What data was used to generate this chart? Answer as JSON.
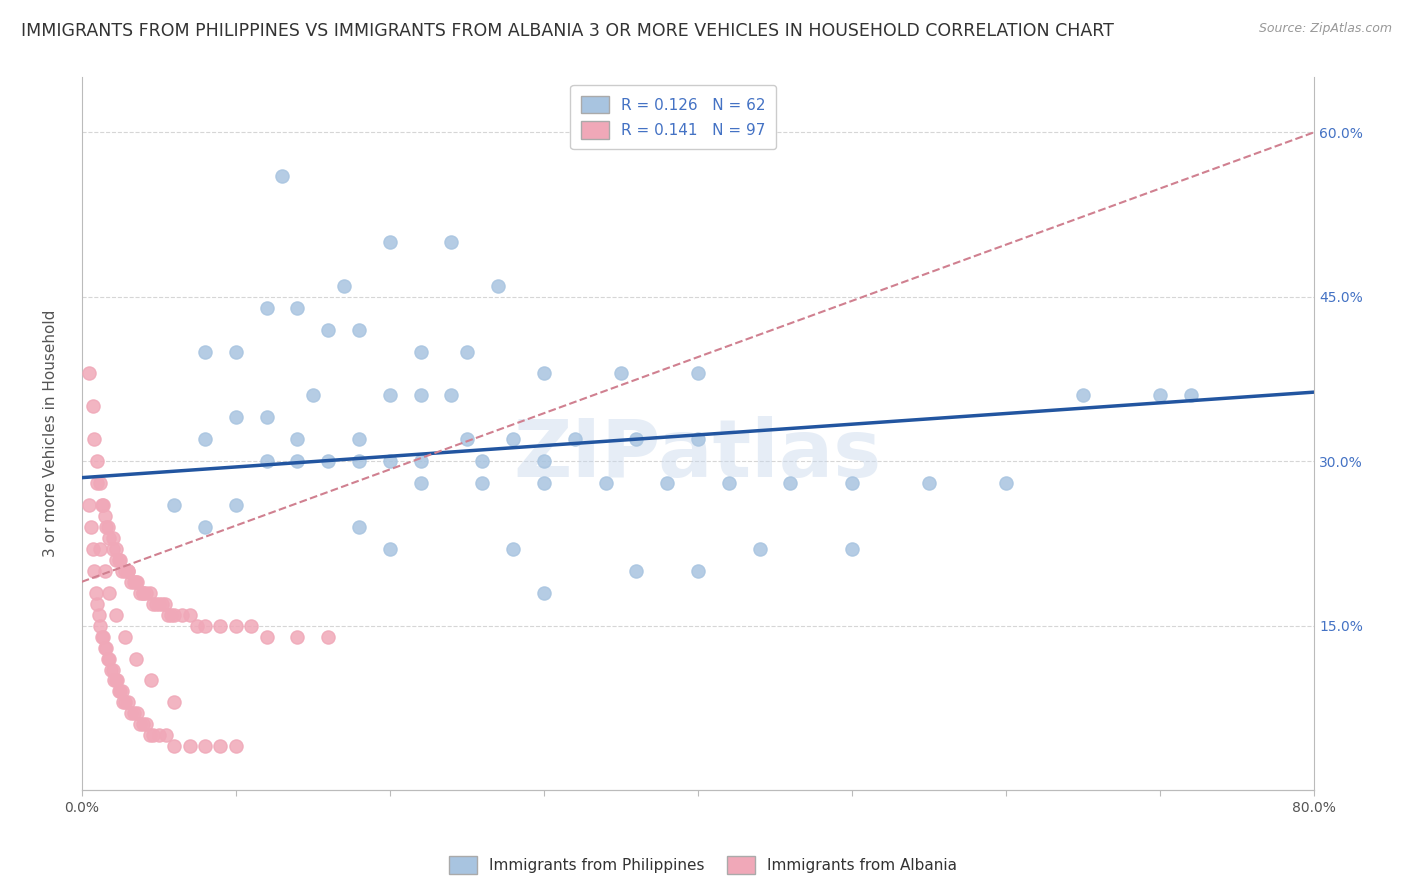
{
  "title": "IMMIGRANTS FROM PHILIPPINES VS IMMIGRANTS FROM ALBANIA 3 OR MORE VEHICLES IN HOUSEHOLD CORRELATION CHART",
  "source": "Source: ZipAtlas.com",
  "ylabel": "3 or more Vehicles in Household",
  "legend_label1": "Immigrants from Philippines",
  "legend_label2": "Immigrants from Albania",
  "R1": 0.126,
  "N1": 62,
  "R2": 0.141,
  "N2": 97,
  "color1": "#a8c4e0",
  "color2": "#f0a8b8",
  "line1_color": "#2255a0",
  "line2_color": "#d08090",
  "xmin": 0.0,
  "xmax": 0.8,
  "ymin": 0.0,
  "ymax": 0.65,
  "yticks": [
    0.15,
    0.3,
    0.45,
    0.6
  ],
  "xticks": [
    0.0,
    0.1,
    0.2,
    0.3,
    0.4,
    0.5,
    0.6,
    0.7,
    0.8
  ],
  "watermark": "ZIPatlas",
  "title_fontsize": 12.5,
  "axis_label_fontsize": 11,
  "tick_fontsize": 10,
  "blue_x": [
    0.13,
    0.2,
    0.24,
    0.27,
    0.17,
    0.12,
    0.14,
    0.16,
    0.18,
    0.1,
    0.08,
    0.22,
    0.25,
    0.3,
    0.35,
    0.4,
    0.15,
    0.2,
    0.22,
    0.24,
    0.12,
    0.1,
    0.08,
    0.14,
    0.18,
    0.25,
    0.28,
    0.32,
    0.36,
    0.4,
    0.2,
    0.22,
    0.26,
    0.3,
    0.18,
    0.16,
    0.14,
    0.12,
    0.22,
    0.26,
    0.3,
    0.34,
    0.38,
    0.42,
    0.46,
    0.5,
    0.55,
    0.6,
    0.65,
    0.7,
    0.72,
    0.5,
    0.44,
    0.1,
    0.06,
    0.08,
    0.18,
    0.2,
    0.28,
    0.36,
    0.4,
    0.3
  ],
  "blue_y": [
    0.56,
    0.5,
    0.5,
    0.46,
    0.46,
    0.44,
    0.44,
    0.42,
    0.42,
    0.4,
    0.4,
    0.4,
    0.4,
    0.38,
    0.38,
    0.38,
    0.36,
    0.36,
    0.36,
    0.36,
    0.34,
    0.34,
    0.32,
    0.32,
    0.32,
    0.32,
    0.32,
    0.32,
    0.32,
    0.32,
    0.3,
    0.3,
    0.3,
    0.3,
    0.3,
    0.3,
    0.3,
    0.3,
    0.28,
    0.28,
    0.28,
    0.28,
    0.28,
    0.28,
    0.28,
    0.28,
    0.28,
    0.28,
    0.36,
    0.36,
    0.36,
    0.22,
    0.22,
    0.26,
    0.26,
    0.24,
    0.24,
    0.22,
    0.22,
    0.2,
    0.2,
    0.18
  ],
  "pink_x": [
    0.005,
    0.007,
    0.008,
    0.01,
    0.01,
    0.012,
    0.013,
    0.014,
    0.015,
    0.016,
    0.017,
    0.018,
    0.02,
    0.02,
    0.022,
    0.022,
    0.024,
    0.025,
    0.026,
    0.028,
    0.03,
    0.03,
    0.032,
    0.034,
    0.035,
    0.036,
    0.038,
    0.04,
    0.04,
    0.042,
    0.044,
    0.046,
    0.048,
    0.05,
    0.052,
    0.054,
    0.056,
    0.058,
    0.06,
    0.065,
    0.07,
    0.075,
    0.08,
    0.09,
    0.1,
    0.11,
    0.12,
    0.14,
    0.16,
    0.005,
    0.006,
    0.007,
    0.008,
    0.009,
    0.01,
    0.011,
    0.012,
    0.013,
    0.014,
    0.015,
    0.016,
    0.017,
    0.018,
    0.019,
    0.02,
    0.021,
    0.022,
    0.023,
    0.024,
    0.025,
    0.026,
    0.027,
    0.028,
    0.03,
    0.032,
    0.034,
    0.036,
    0.038,
    0.04,
    0.042,
    0.044,
    0.046,
    0.05,
    0.055,
    0.06,
    0.07,
    0.08,
    0.09,
    0.1,
    0.012,
    0.015,
    0.018,
    0.022,
    0.028,
    0.035,
    0.045,
    0.06
  ],
  "pink_y": [
    0.38,
    0.35,
    0.32,
    0.3,
    0.28,
    0.28,
    0.26,
    0.26,
    0.25,
    0.24,
    0.24,
    0.23,
    0.23,
    0.22,
    0.22,
    0.21,
    0.21,
    0.21,
    0.2,
    0.2,
    0.2,
    0.2,
    0.19,
    0.19,
    0.19,
    0.19,
    0.18,
    0.18,
    0.18,
    0.18,
    0.18,
    0.17,
    0.17,
    0.17,
    0.17,
    0.17,
    0.16,
    0.16,
    0.16,
    0.16,
    0.16,
    0.15,
    0.15,
    0.15,
    0.15,
    0.15,
    0.14,
    0.14,
    0.14,
    0.26,
    0.24,
    0.22,
    0.2,
    0.18,
    0.17,
    0.16,
    0.15,
    0.14,
    0.14,
    0.13,
    0.13,
    0.12,
    0.12,
    0.11,
    0.11,
    0.1,
    0.1,
    0.1,
    0.09,
    0.09,
    0.09,
    0.08,
    0.08,
    0.08,
    0.07,
    0.07,
    0.07,
    0.06,
    0.06,
    0.06,
    0.05,
    0.05,
    0.05,
    0.05,
    0.04,
    0.04,
    0.04,
    0.04,
    0.04,
    0.22,
    0.2,
    0.18,
    0.16,
    0.14,
    0.12,
    0.1,
    0.08
  ],
  "blue_trend_x0": 0.0,
  "blue_trend_y0": 0.285,
  "blue_trend_x1": 0.8,
  "blue_trend_y1": 0.363,
  "pink_trend_x0": 0.0,
  "pink_trend_y0": 0.19,
  "pink_trend_x1": 0.8,
  "pink_trend_y1": 0.6
}
